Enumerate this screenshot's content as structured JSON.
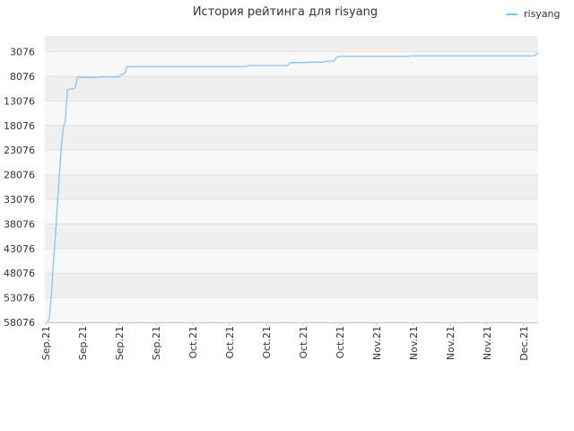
{
  "chart_data": {
    "type": "line",
    "title": "История рейтинга для risyang",
    "xlabel": "",
    "ylabel": "",
    "y_inverted": true,
    "ylim": [
      3076,
      58076
    ],
    "yticks": [
      "3076",
      "8076",
      "13076",
      "18076",
      "23076",
      "28076",
      "33076",
      "38076",
      "43076",
      "48076",
      "53076",
      "58076"
    ],
    "xticks": [
      "Sep.21",
      "Sep.21",
      "Sep.21",
      "Sep.21",
      "Oct.21",
      "Oct.21",
      "Oct.21",
      "Oct.21",
      "Oct.21",
      "Nov.21",
      "Nov.21",
      "Nov.21",
      "Nov.21",
      "Dec.21"
    ],
    "grid": true,
    "legend_position": "top-right",
    "series": [
      {
        "name": "risyang",
        "color": "#88c4f2",
        "values": [
          58076,
          57000,
          52000,
          46000,
          40000,
          34000,
          28000,
          22000,
          18500,
          17000,
          10800,
          10700,
          10600,
          10600,
          10400,
          8300,
          8300,
          8300,
          8300,
          8300,
          8300,
          8300,
          8300,
          8300,
          8300,
          8300,
          8200,
          8200,
          8200,
          8200,
          8200,
          8200,
          8200,
          8200,
          8200,
          8200,
          8200,
          7700,
          7700,
          7400,
          6100,
          6100,
          6100,
          6100,
          6100,
          6100,
          6100,
          6100,
          6100,
          6100,
          6100,
          6100,
          6100,
          6100,
          6100,
          6100,
          6100,
          6100,
          6100,
          6100,
          6100,
          6100,
          6100,
          6100,
          6100,
          6100,
          6100,
          6100,
          6100,
          6100,
          6100,
          6100,
          6100,
          6100,
          6100,
          6100,
          6100,
          6100,
          6100,
          6100,
          6100,
          6100,
          6100,
          6100,
          6100,
          6100,
          6100,
          6100,
          6100,
          6100,
          6100,
          6100,
          6100,
          6100,
          6100,
          6100,
          6100,
          6100,
          6100,
          6100,
          6100,
          5900,
          5900,
          5900,
          5900,
          5900,
          5900,
          5900,
          5900,
          5900,
          5900,
          5900,
          5900,
          5900,
          5900,
          5900,
          5900,
          5900,
          5900,
          5900,
          5900,
          5900,
          5300,
          5300,
          5300,
          5300,
          5300,
          5300,
          5300,
          5300,
          5300,
          5200,
          5200,
          5200,
          5200,
          5200,
          5200,
          5200,
          5200,
          5200,
          5000,
          5000,
          5000,
          5000,
          5000,
          4500,
          4200,
          4000,
          4000,
          4000,
          4000,
          4000,
          4000,
          4000,
          4000,
          4000,
          4000,
          4000,
          4000,
          4000,
          4000,
          4000,
          4000,
          4000,
          4000,
          4000,
          4000,
          4000,
          4000,
          4000,
          4000,
          4000,
          4000,
          4000,
          4000,
          4000,
          4000,
          4000,
          4000,
          4000,
          4000,
          4000,
          4000,
          3900,
          3900,
          3900,
          3900,
          3900,
          3900,
          3900,
          3900,
          3900,
          3900,
          3900,
          3900,
          3900,
          3900,
          3900,
          3900,
          3900,
          3900,
          3900,
          3900,
          3900,
          3900,
          3900,
          3900,
          3900,
          3900,
          3900,
          3900,
          3900,
          3900,
          3900,
          3900,
          3900,
          3900,
          3900,
          3900,
          3900,
          3900,
          3900,
          3900,
          3900,
          3900,
          3900,
          3900,
          3900,
          3900,
          3900,
          3900,
          3900,
          3900,
          3900,
          3900,
          3900,
          3900,
          3900,
          3900,
          3900,
          3900,
          3900,
          3900,
          3900,
          3900,
          3900,
          3600,
          3400
        ]
      }
    ]
  }
}
